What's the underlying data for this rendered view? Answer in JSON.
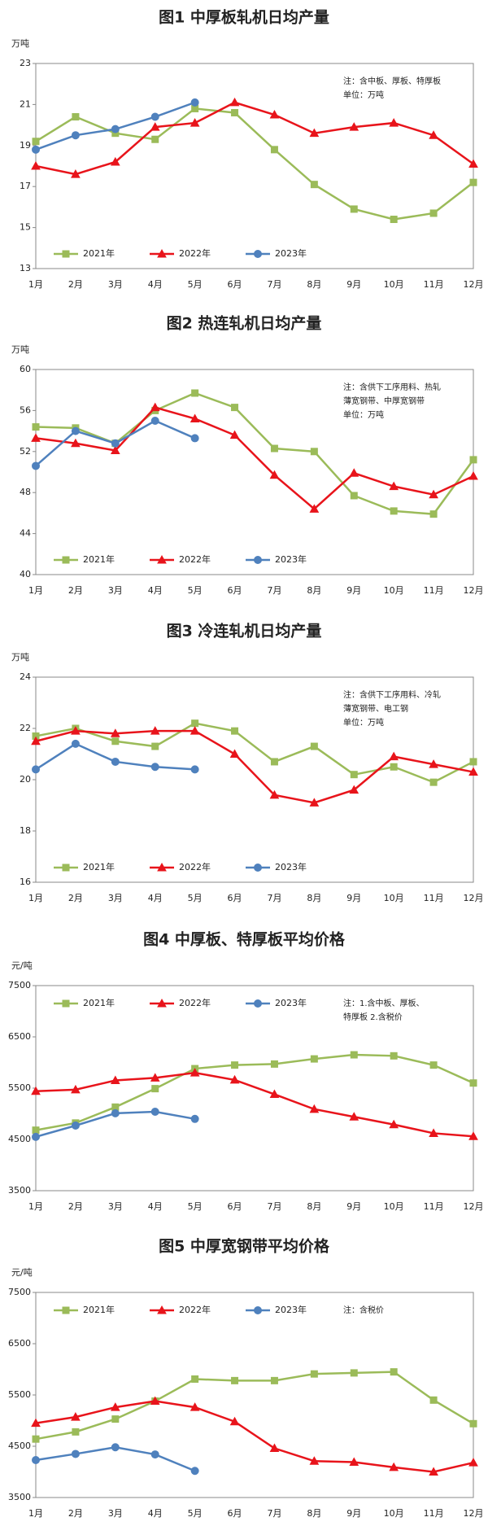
{
  "chart_data": [
    {
      "type": "line",
      "title": "图1  中厚板轧机日均产量",
      "y_label": "万吨",
      "note": [
        "注：含中板、厚板、特厚板",
        "单位：万吨"
      ],
      "categories": [
        "1月",
        "2月",
        "3月",
        "4月",
        "5月",
        "6月",
        "7月",
        "8月",
        "9月",
        "10月",
        "11月",
        "12月"
      ],
      "ylim": [
        13,
        23
      ],
      "yticks": [
        13,
        15,
        17,
        19,
        21,
        23
      ],
      "grid": false,
      "legend": "lower left",
      "series": [
        {
          "name": "2021年",
          "color": "#9bbb59",
          "marker": "square",
          "values": [
            19.2,
            20.4,
            19.6,
            19.3,
            20.8,
            20.6,
            18.8,
            17.1,
            15.9,
            15.4,
            15.7,
            17.2
          ]
        },
        {
          "name": "2022年",
          "color": "#e8141b",
          "marker": "triangle",
          "values": [
            18.0,
            17.6,
            18.2,
            19.9,
            20.1,
            21.1,
            20.5,
            19.6,
            19.9,
            20.1,
            19.5,
            18.1
          ]
        },
        {
          "name": "2023年",
          "color": "#4f81bd",
          "marker": "circle",
          "values": [
            18.8,
            19.5,
            19.8,
            20.4,
            21.1,
            null,
            null,
            null,
            null,
            null,
            null,
            null
          ]
        }
      ]
    },
    {
      "type": "line",
      "title": "图2  热连轧机日均产量",
      "y_label": "万吨",
      "note": [
        "注：含供下工序用料、热轧",
        "薄宽钢带、中厚宽钢带",
        "单位：万吨"
      ],
      "categories": [
        "1月",
        "2月",
        "3月",
        "4月",
        "5月",
        "6月",
        "7月",
        "8月",
        "9月",
        "10月",
        "11月",
        "12月"
      ],
      "ylim": [
        40,
        60
      ],
      "yticks": [
        40,
        44,
        48,
        52,
        56,
        60
      ],
      "grid": false,
      "legend": "lower left",
      "series": [
        {
          "name": "2021年",
          "color": "#9bbb59",
          "marker": "square",
          "values": [
            54.4,
            54.3,
            52.8,
            56.0,
            57.7,
            56.3,
            52.3,
            52.0,
            47.7,
            46.2,
            45.9,
            51.2
          ]
        },
        {
          "name": "2022年",
          "color": "#e8141b",
          "marker": "triangle",
          "values": [
            53.3,
            52.8,
            52.1,
            56.3,
            55.2,
            53.6,
            49.7,
            46.4,
            49.9,
            48.6,
            47.8,
            49.6
          ]
        },
        {
          "name": "2023年",
          "color": "#4f81bd",
          "marker": "circle",
          "values": [
            50.6,
            54.0,
            52.8,
            55.0,
            53.3,
            null,
            null,
            null,
            null,
            null,
            null,
            null
          ]
        }
      ]
    },
    {
      "type": "line",
      "title": "图3  冷连轧机日均产量",
      "y_label": "万吨",
      "note": [
        "注：含供下工序用料、冷轧",
        "薄宽钢带、电工钢",
        "单位：万吨"
      ],
      "categories": [
        "1月",
        "2月",
        "3月",
        "4月",
        "5月",
        "6月",
        "7月",
        "8月",
        "9月",
        "10月",
        "11月",
        "12月"
      ],
      "ylim": [
        16,
        24
      ],
      "yticks": [
        16,
        18,
        20,
        22,
        24
      ],
      "grid": false,
      "legend": "lower left",
      "series": [
        {
          "name": "2021年",
          "color": "#9bbb59",
          "marker": "square",
          "values": [
            21.7,
            22.0,
            21.5,
            21.3,
            22.2,
            21.9,
            20.7,
            21.3,
            20.2,
            20.5,
            19.9,
            20.7
          ]
        },
        {
          "name": "2022年",
          "color": "#e8141b",
          "marker": "triangle",
          "values": [
            21.5,
            21.9,
            21.8,
            21.9,
            21.9,
            21.0,
            19.4,
            19.1,
            19.6,
            20.9,
            20.6,
            20.3
          ]
        },
        {
          "name": "2023年",
          "color": "#4f81bd",
          "marker": "circle",
          "values": [
            20.4,
            21.4,
            20.7,
            20.5,
            20.4,
            null,
            null,
            null,
            null,
            null,
            null,
            null
          ]
        }
      ]
    },
    {
      "type": "line",
      "title": "图4  中厚板、特厚板平均价格",
      "y_label": "元/吨",
      "note": [
        "注：1.含中板、厚板、",
        "特厚板  2.含税价"
      ],
      "categories": [
        "1月",
        "2月",
        "3月",
        "4月",
        "5月",
        "6月",
        "7月",
        "8月",
        "9月",
        "10月",
        "11月",
        "12月"
      ],
      "ylim": [
        3500,
        7500
      ],
      "yticks": [
        3500,
        4500,
        5500,
        6500,
        7500
      ],
      "grid": false,
      "legend": "upper left",
      "series": [
        {
          "name": "2021年",
          "color": "#9bbb59",
          "marker": "square",
          "values": [
            4680,
            4820,
            5130,
            5490,
            5880,
            5950,
            5970,
            6070,
            6150,
            6130,
            5950,
            5600
          ]
        },
        {
          "name": "2022年",
          "color": "#e8141b",
          "marker": "triangle",
          "values": [
            5440,
            5470,
            5650,
            5700,
            5800,
            5660,
            5380,
            5090,
            4940,
            4790,
            4620,
            4560
          ]
        },
        {
          "name": "2023年",
          "color": "#4f81bd",
          "marker": "circle",
          "values": [
            4550,
            4770,
            5010,
            5040,
            4900,
            null,
            null,
            null,
            null,
            null,
            null,
            null
          ]
        }
      ]
    },
    {
      "type": "line",
      "title": "图5  中厚宽钢带平均价格",
      "y_label": "元/吨",
      "note": [
        "注：含税价"
      ],
      "categories": [
        "1月",
        "2月",
        "3月",
        "4月",
        "5月",
        "6月",
        "7月",
        "8月",
        "9月",
        "10月",
        "11月",
        "12月"
      ],
      "ylim": [
        3500,
        7500
      ],
      "yticks": [
        3500,
        4500,
        5500,
        6500,
        7500
      ],
      "grid": false,
      "legend": "upper left",
      "series": [
        {
          "name": "2021年",
          "color": "#9bbb59",
          "marker": "square",
          "values": [
            4640,
            4780,
            5030,
            5380,
            5810,
            5780,
            5780,
            5910,
            5930,
            5950,
            5400,
            4940
          ]
        },
        {
          "name": "2022年",
          "color": "#e8141b",
          "marker": "triangle",
          "values": [
            4950,
            5070,
            5260,
            5380,
            5260,
            4980,
            4460,
            4210,
            4190,
            4090,
            4000,
            4180
          ]
        },
        {
          "name": "2023年",
          "color": "#4f81bd",
          "marker": "circle",
          "values": [
            4230,
            4350,
            4480,
            4340,
            4020,
            null,
            null,
            null,
            null,
            null,
            null,
            null
          ]
        }
      ]
    }
  ]
}
